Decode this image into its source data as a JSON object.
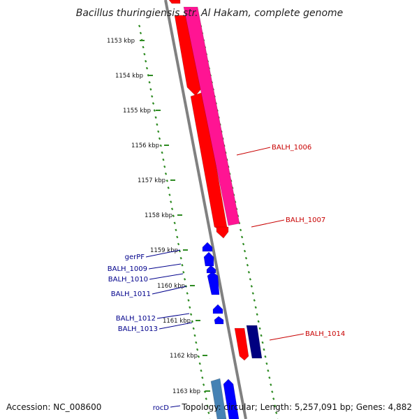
{
  "title": "Bacillus thuringiensis str. Al Hakam, complete genome",
  "ticks": [
    {
      "label": "1153 kbp"
    },
    {
      "label": "1154 kbp"
    },
    {
      "label": "1155 kbp"
    },
    {
      "label": "1156 kbp"
    },
    {
      "label": "1157 kbp"
    },
    {
      "label": "1158 kbp"
    },
    {
      "label": "1159 kbp"
    },
    {
      "label": "1160 kbp"
    },
    {
      "label": "1161 kbp"
    },
    {
      "label": "1162 kbp"
    },
    {
      "label": "1163 kbp"
    }
  ],
  "genes_forward": [
    {
      "label": "BALH_1006"
    },
    {
      "label": "BALH_1007"
    },
    {
      "label": "BALH_1014"
    }
  ],
  "genes_reverse": [
    {
      "label": "gerPF"
    },
    {
      "label": "BALH_1009"
    },
    {
      "label": "BALH_1010"
    },
    {
      "label": "BALH_1011"
    },
    {
      "label": "BALH_1012"
    },
    {
      "label": "BALH_1013"
    },
    {
      "label": "rocD"
    }
  ],
  "footer": {
    "accession": "Accession: NC_008600",
    "summary": "Topology: circular; Length: 5,257,091 bp; Genes: 4,882"
  },
  "colors": {
    "forward_label": "#c80000",
    "reverse_label": "#00008b",
    "ruler": "#2e8b22",
    "backbone": "#808080",
    "cds_red": "#ff0000",
    "cds_pink": "#ff1493",
    "cds_blue": "#0000ff",
    "cds_navy": "#000080",
    "cds_steel": "#4682b4"
  }
}
